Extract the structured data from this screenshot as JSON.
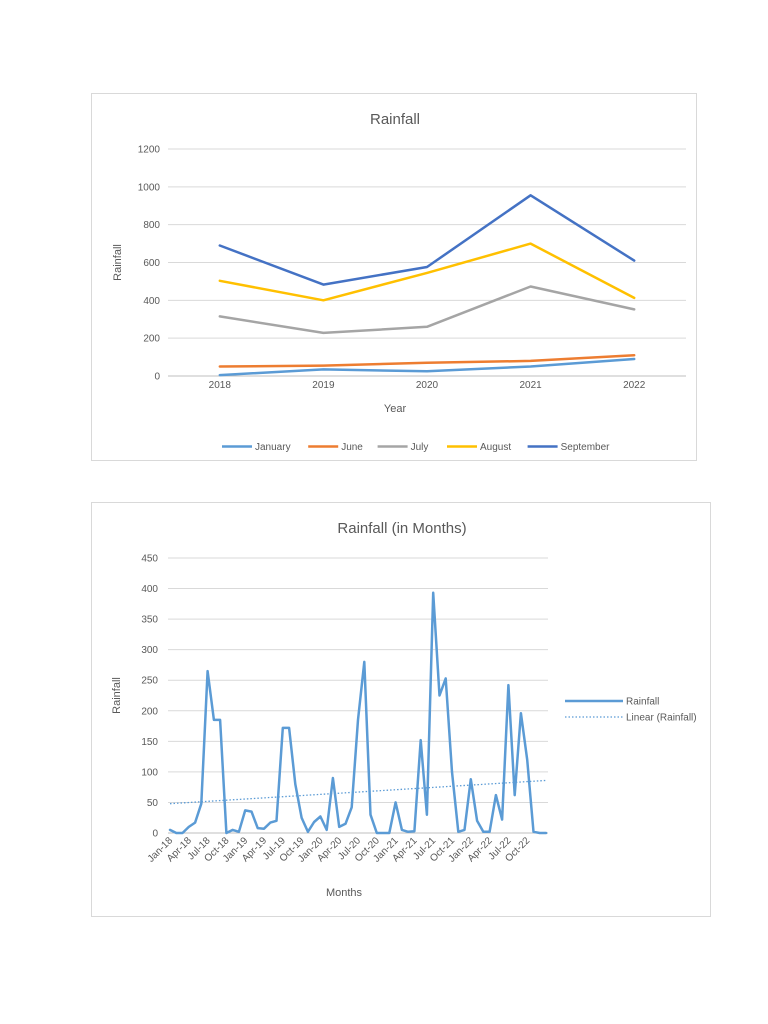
{
  "chart_data": [
    {
      "type": "line",
      "title": "Rainfall",
      "xlabel": "Year",
      "ylabel": "Rainfall",
      "categories": [
        "2018",
        "2019",
        "2020",
        "2021",
        "2022"
      ],
      "ylim": [
        0,
        1200
      ],
      "yticks": [
        0,
        200,
        400,
        600,
        800,
        1000,
        1200
      ],
      "grid": true,
      "legend_position": "bottom",
      "series": [
        {
          "name": "January",
          "color": "#5B9BD5",
          "values": [
            5,
            35,
            25,
            50,
            90
          ]
        },
        {
          "name": "June",
          "color": "#ED7D31",
          "values": [
            50,
            55,
            70,
            80,
            110
          ]
        },
        {
          "name": "July",
          "color": "#A5A5A5",
          "values": [
            315,
            228,
            260,
            473,
            352
          ]
        },
        {
          "name": "August",
          "color": "#FFC000",
          "values": [
            503,
            400,
            545,
            700,
            413
          ]
        },
        {
          "name": "September",
          "color": "#4472C4",
          "values": [
            690,
            483,
            576,
            955,
            610
          ]
        }
      ]
    },
    {
      "type": "line",
      "title": "Rainfall (in Months)",
      "xlabel": "Months",
      "ylabel": "Rainfall",
      "ylim": [
        0,
        450
      ],
      "yticks": [
        0,
        50,
        100,
        150,
        200,
        250,
        300,
        350,
        400,
        450
      ],
      "grid": true,
      "legend_position": "right",
      "x": [
        "Jan-18",
        "Feb-18",
        "Mar-18",
        "Apr-18",
        "May-18",
        "Jun-18",
        "Jul-18",
        "Aug-18",
        "Sep-18",
        "Oct-18",
        "Nov-18",
        "Dec-18",
        "Jan-19",
        "Feb-19",
        "Mar-19",
        "Apr-19",
        "May-19",
        "Jun-19",
        "Jul-19",
        "Aug-19",
        "Sep-19",
        "Oct-19",
        "Nov-19",
        "Dec-19",
        "Jan-20",
        "Feb-20",
        "Mar-20",
        "Apr-20",
        "May-20",
        "Jun-20",
        "Jul-20",
        "Aug-20",
        "Sep-20",
        "Oct-20",
        "Nov-20",
        "Dec-20",
        "Jan-21",
        "Feb-21",
        "Mar-21",
        "Apr-21",
        "May-21",
        "Jun-21",
        "Jul-21",
        "Aug-21",
        "Sep-21",
        "Oct-21",
        "Nov-21",
        "Dec-21",
        "Jan-22",
        "Feb-22",
        "Mar-22",
        "Apr-22",
        "May-22",
        "Jun-22",
        "Jul-22",
        "Aug-22",
        "Sep-22",
        "Oct-22",
        "Nov-22",
        "Dec-22",
        "Jan-23"
      ],
      "x_tick_labels": [
        "Jan-18",
        "Apr-18",
        "Jul-18",
        "Oct-18",
        "Jan-19",
        "Apr-19",
        "Jul-19",
        "Oct-19",
        "Jan-20",
        "Apr-20",
        "Jul-20",
        "Oct-20",
        "Jan-21",
        "Apr-21",
        "Jul-21",
        "Oct-21",
        "Jan-22",
        "Apr-22",
        "Jul-22",
        "Oct-22"
      ],
      "series": [
        {
          "name": "Rainfall",
          "color": "#5B9BD5",
          "style": "solid",
          "values": [
            5,
            0,
            0,
            10,
            17,
            48,
            265,
            185,
            185,
            0,
            5,
            2,
            37,
            35,
            8,
            7,
            17,
            20,
            172,
            172,
            80,
            25,
            2,
            18,
            27,
            5,
            90,
            10,
            15,
            42,
            185,
            280,
            30,
            0,
            0,
            0,
            50,
            5,
            2,
            3,
            152,
            30,
            393,
            225,
            253,
            100,
            2,
            5,
            88,
            20,
            2,
            2,
            62,
            22,
            242,
            62,
            196,
            120,
            2,
            0,
            0
          ]
        },
        {
          "name": "Linear (Rainfall)",
          "color": "#5B9BD5",
          "style": "dotted",
          "values_trend_endpoints": [
            48,
            86
          ]
        }
      ]
    }
  ]
}
